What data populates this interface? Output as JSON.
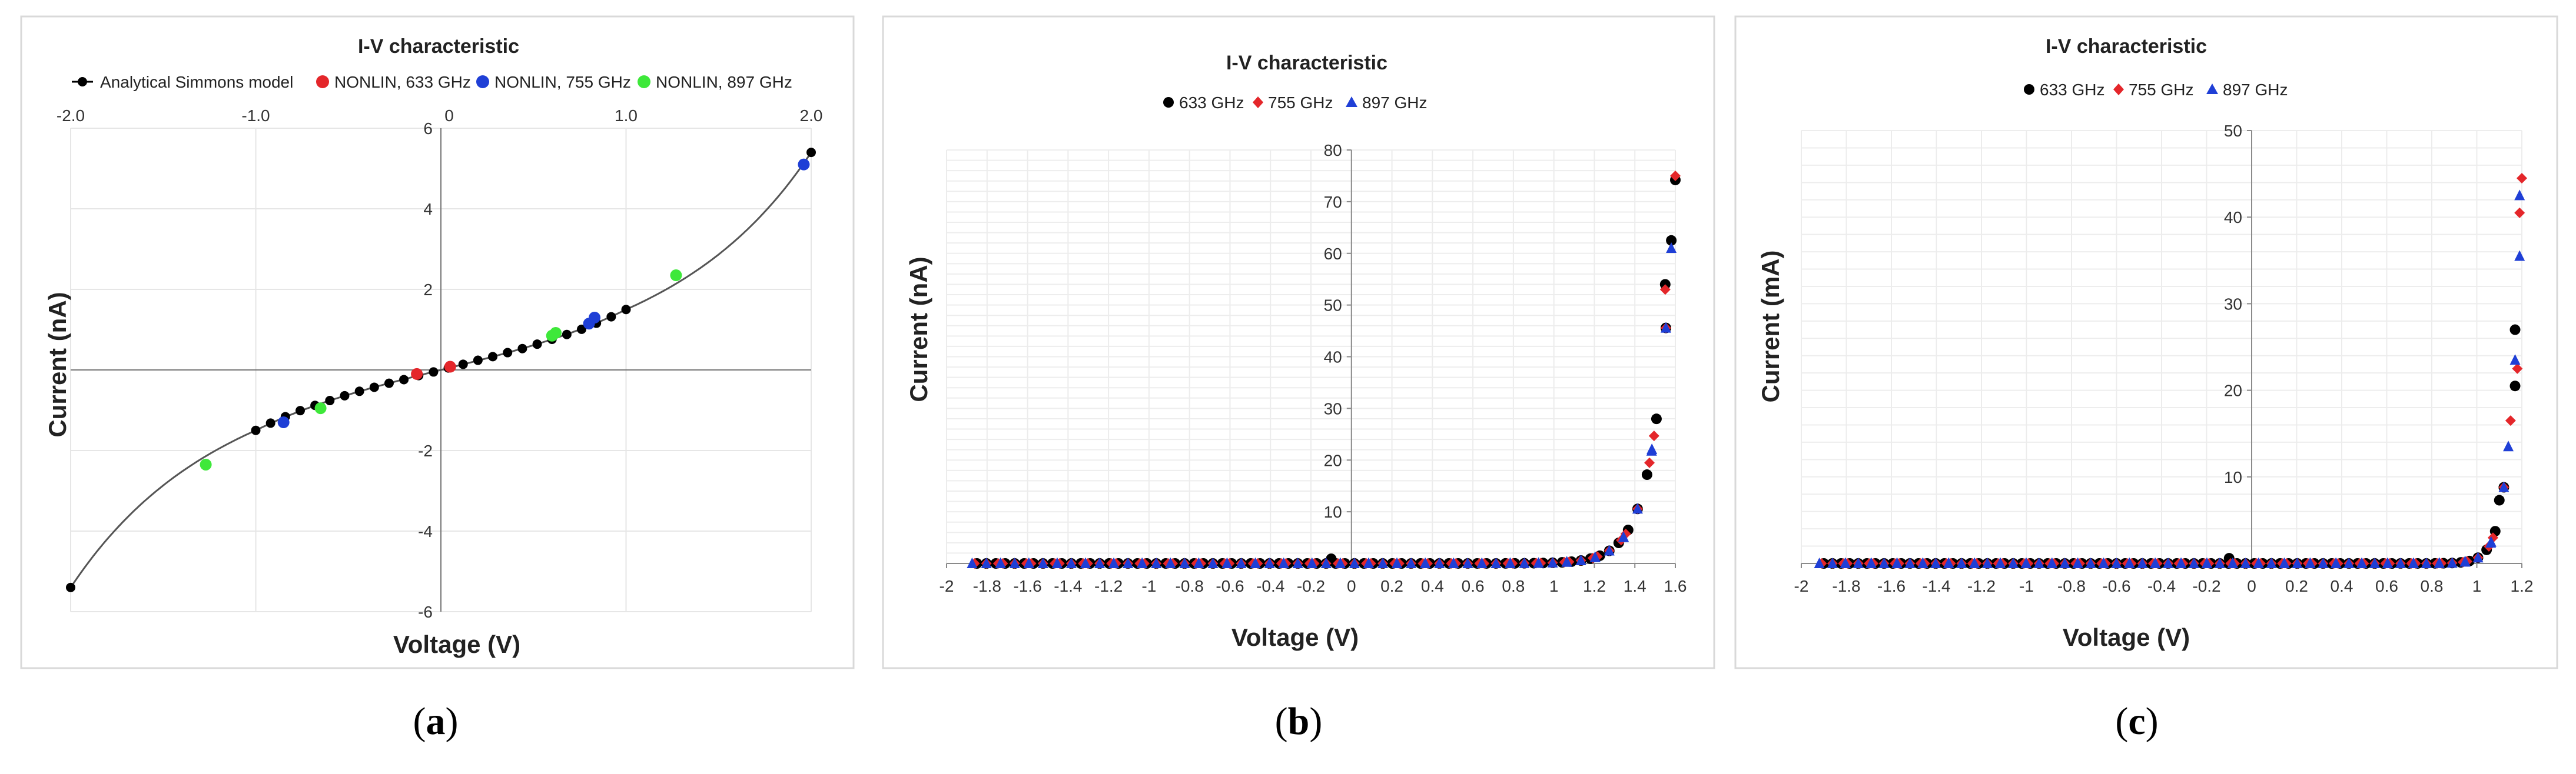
{
  "chart_data": [
    {
      "id": "a",
      "type": "scatter",
      "title": "I-V characteristic",
      "xlabel": "Voltage (V)",
      "ylabel": "Current (nA)",
      "xlim": [
        -2.0,
        2.0
      ],
      "ylim": [
        -6,
        6
      ],
      "xticks": [
        -2.0,
        -1.0,
        0,
        1.0,
        2.0
      ],
      "xtick_labels": [
        "-2.0",
        "-1.0",
        "0",
        "1.0",
        "2.0"
      ],
      "yticks": [
        -6,
        -4,
        -2,
        0,
        2,
        4,
        6
      ],
      "ytick_labels": [
        "-6",
        "-4",
        "-2",
        "0",
        "2",
        "4",
        "6"
      ],
      "grid": true,
      "legend": "top",
      "caption": "a",
      "series": [
        {
          "name": "Analytical Simmons model",
          "color": "#000000",
          "marker": "circle-line",
          "x": [
            -2.0,
            -1.0,
            -0.92,
            -0.84,
            -0.76,
            -0.68,
            -0.6,
            -0.52,
            -0.44,
            -0.36,
            -0.28,
            -0.2,
            -0.12,
            -0.04,
            0.04,
            0.12,
            0.2,
            0.28,
            0.36,
            0.44,
            0.52,
            0.6,
            0.68,
            0.76,
            0.84,
            0.92,
            1.0,
            2.0
          ],
          "y": [
            -5.4,
            -1.5,
            -1.32,
            -1.16,
            -1.01,
            -0.88,
            -0.76,
            -0.64,
            -0.53,
            -0.43,
            -0.33,
            -0.24,
            -0.14,
            -0.05,
            0.05,
            0.14,
            0.24,
            0.33,
            0.43,
            0.53,
            0.64,
            0.76,
            0.88,
            1.01,
            1.16,
            1.32,
            1.5,
            5.4
          ]
        },
        {
          "name": "NONLIN, 633 GHz",
          "color": "#e4262a",
          "marker": "circle",
          "x": [
            -0.13,
            0.05
          ],
          "y": [
            -0.1,
            0.08
          ]
        },
        {
          "name": "NONLIN, 755 GHz",
          "color": "#1f3fd6",
          "marker": "circle",
          "x": [
            -0.85,
            0.8,
            0.83,
            1.96
          ],
          "y": [
            -1.3,
            1.15,
            1.3,
            5.1
          ]
        },
        {
          "name": "NONLIN, 897 GHz",
          "color": "#3ee83a",
          "marker": "circle",
          "x": [
            -1.27,
            -0.65,
            0.6,
            0.62,
            1.27
          ],
          "y": [
            -2.35,
            -0.95,
            0.85,
            0.92,
            2.35
          ]
        }
      ]
    },
    {
      "id": "b",
      "type": "scatter",
      "title": "I-V characteristic",
      "xlabel": "Voltage (V)",
      "ylabel": "Current (nA)",
      "xlim": [
        -2,
        1.6
      ],
      "ylim": [
        0,
        80
      ],
      "xticks": [
        -2,
        -1.8,
        -1.6,
        -1.4,
        -1.2,
        -1,
        -0.8,
        -0.6,
        -0.4,
        -0.2,
        0,
        0.2,
        0.4,
        0.6,
        0.8,
        1,
        1.2,
        1.4,
        1.6
      ],
      "xtick_labels": [
        "-2",
        "-1.8",
        "-1.6",
        "-1.4",
        "-1.2",
        "-1",
        "-0.8",
        "-0.6",
        "-0.4",
        "-0.2",
        "0",
        "0.2",
        "0.4",
        "0.6",
        "0.8",
        "1",
        "1.2",
        "1.4",
        "1.6"
      ],
      "yticks": [
        10,
        20,
        30,
        40,
        50,
        60,
        70,
        80
      ],
      "ytick_labels": [
        "10",
        "20",
        "30",
        "40",
        "50",
        "60",
        "70",
        "80"
      ],
      "grid": true,
      "legend": "top",
      "caption": "b",
      "curve": {
        "type": "exp",
        "a": 4e-06,
        "k": 10.46,
        "from": -1.85,
        "to": 1.6,
        "n": 75
      },
      "series": [
        {
          "name": "633 GHz",
          "color": "#000000",
          "marker": "circle",
          "offset": 0.0,
          "x": [
            -0.1,
            1.55,
            1.58
          ],
          "y": [
            0.9,
            54,
            62.5
          ]
        },
        {
          "name": "755 GHz",
          "color": "#e4262a",
          "marker": "diamond",
          "offset": 0.012,
          "x": [
            1.6,
            1.55
          ],
          "y": [
            75,
            53
          ]
        },
        {
          "name": "897 GHz",
          "color": "#1f3fd6",
          "marker": "triangle",
          "offset": 0.024,
          "x": [
            1.58
          ],
          "y": [
            61
          ]
        }
      ]
    },
    {
      "id": "c",
      "type": "scatter",
      "title": "I-V characteristic",
      "xlabel": "Voltage (V)",
      "ylabel": "Current (mA)",
      "xlim": [
        -2,
        1.2
      ],
      "ylim": [
        0,
        50
      ],
      "xticks": [
        -2,
        -1.8,
        -1.6,
        -1.4,
        -1.2,
        -1,
        -0.8,
        -0.6,
        -0.4,
        -0.2,
        0,
        0.2,
        0.4,
        0.6,
        0.8,
        1,
        1.2
      ],
      "xtick_labels": [
        "-2",
        "-1.8",
        "-1.6",
        "-1.4",
        "-1.2",
        "-1",
        "-0.8",
        "-0.6",
        "-0.4",
        "-0.2",
        "0",
        "0.2",
        "0.4",
        "0.6",
        "0.8",
        "1",
        "1.2"
      ],
      "yticks": [
        10,
        20,
        30,
        40,
        50
      ],
      "ytick_labels": [
        "10",
        "20",
        "30",
        "40",
        "50"
      ],
      "grid": true,
      "legend": "top",
      "caption": "c",
      "curve": {
        "type": "exp",
        "a": 1e-10,
        "k": 22.5,
        "from": -1.9,
        "to": 1.12,
        "n": 80
      },
      "series": [
        {
          "name": "633 GHz",
          "color": "#000000",
          "marker": "circle",
          "offset": 0.0,
          "x": [
            -0.1,
            1.1,
            1.17,
            1.17
          ],
          "y": [
            0.6,
            7.3,
            20.5,
            27
          ]
        },
        {
          "name": "755 GHz",
          "color": "#e4262a",
          "marker": "diamond",
          "offset": 0.01,
          "x": [
            1.15,
            1.18,
            1.19,
            1.2
          ],
          "y": [
            16.5,
            22.5,
            40.5,
            44.5
          ]
        },
        {
          "name": "897 GHz",
          "color": "#1f3fd6",
          "marker": "triangle",
          "offset": 0.02,
          "x": [
            1.14,
            1.17,
            1.19,
            1.19
          ],
          "y": [
            13.5,
            23.5,
            35.5,
            42.5
          ]
        }
      ]
    }
  ]
}
